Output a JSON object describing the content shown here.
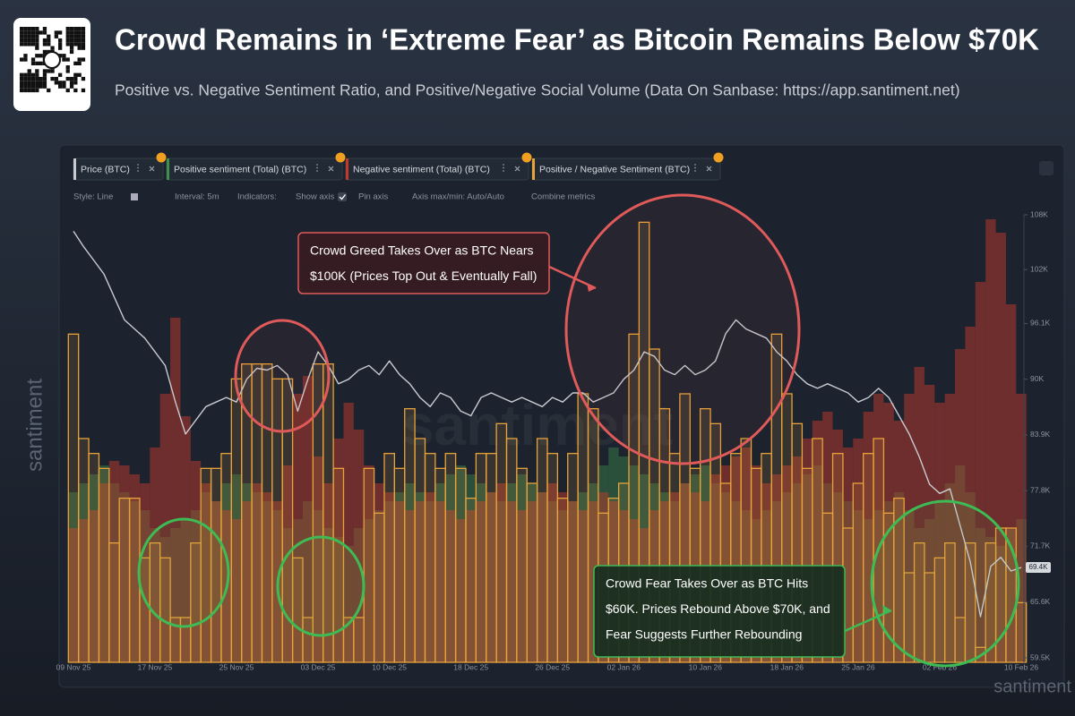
{
  "chart_data": {
    "type": "sentiment-combo",
    "title": "Crowd Remains in ‘Extreme Fear’ as Bitcoin Remains Below $70K",
    "subtitle": "Positive vs. Negative Sentiment Ratio, and Positive/Negative Social Volume (Data On Sanbase: https://app.santiment.net)",
    "categories": [
      "09 Nov 25",
      null,
      null,
      null,
      null,
      null,
      null,
      null,
      "17 Nov 25",
      null,
      null,
      null,
      null,
      null,
      null,
      null,
      "25 Nov 25",
      null,
      null,
      null,
      null,
      null,
      null,
      null,
      "03 Dec 25",
      null,
      null,
      null,
      null,
      null,
      null,
      "10 Dec 25",
      null,
      null,
      null,
      null,
      null,
      null,
      null,
      "18 Dec 25",
      null,
      null,
      null,
      null,
      null,
      null,
      null,
      "26 Dec 25",
      null,
      null,
      null,
      null,
      null,
      null,
      "02 Jan 26",
      null,
      null,
      null,
      null,
      null,
      null,
      null,
      "10 Jan 26",
      null,
      null,
      null,
      null,
      null,
      null,
      null,
      "18 Jan 26",
      null,
      null,
      null,
      null,
      null,
      null,
      "25 Jan 26",
      null,
      null,
      null,
      null,
      null,
      null,
      null,
      "02 Feb 26",
      null,
      null,
      null,
      null,
      null,
      null,
      null,
      "10 Feb 26"
    ],
    "series": [
      {
        "name": "Price (BTC)",
        "color": "#c8cbd0",
        "axis": "y2",
        "values": [
          106200,
          104500,
          103000,
          101500,
          99000,
          96500,
          95500,
          94500,
          93000,
          91500,
          87500,
          84000,
          85500,
          87000,
          87500,
          88000,
          87500,
          90000,
          91200,
          91000,
          91500,
          90500,
          86500,
          90000,
          93000,
          91500,
          89500,
          90000,
          91000,
          91500,
          90500,
          92000,
          90500,
          89500,
          88000,
          87000,
          88500,
          88000,
          86500,
          86000,
          88000,
          88500,
          88000,
          87500,
          88000,
          87500,
          87000,
          88000,
          87500,
          88500,
          88500,
          87500,
          88000,
          88500,
          90000,
          91000,
          93000,
          92500,
          91000,
          90500,
          91500,
          90500,
          91000,
          92000,
          95000,
          96500,
          95500,
          95000,
          94500,
          93000,
          92000,
          90500,
          89500,
          89000,
          89500,
          89000,
          88500,
          87500,
          88000,
          89000,
          88000,
          86000,
          84000,
          81500,
          78500,
          77500,
          78000,
          74000,
          70000,
          64000,
          69500,
          70500,
          69000,
          69400
        ]
      },
      {
        "name": "Positive sentiment (Total) (BTC)",
        "color": "#3f8f4f",
        "axis": "y3",
        "values": [
          38,
          40,
          42,
          44,
          40,
          38,
          36,
          34,
          30,
          28,
          30,
          32,
          34,
          38,
          36,
          40,
          42,
          40,
          38,
          36,
          34,
          30,
          32,
          36,
          34,
          30,
          28,
          26,
          30,
          32,
          34,
          36,
          38,
          40,
          38,
          36,
          40,
          42,
          44,
          42,
          40,
          38,
          36,
          40,
          42,
          40,
          38,
          36,
          34,
          36,
          38,
          40,
          44,
          48,
          46,
          44,
          42,
          40,
          38,
          36,
          40,
          42,
          44,
          40,
          38,
          36,
          34,
          32,
          34,
          36,
          38,
          40,
          42,
          44,
          40,
          38,
          36,
          34,
          32,
          34,
          36,
          38,
          34,
          30,
          32,
          36,
          40,
          44,
          38,
          30,
          28,
          26,
          30,
          32
        ]
      },
      {
        "name": "Negative sentiment (Total) (BTC)",
        "color": "#c0392b",
        "axis": "y3",
        "values": [
          30,
          32,
          34,
          40,
          45,
          44,
          42,
          40,
          48,
          60,
          77,
          55,
          45,
          40,
          36,
          34,
          32,
          36,
          40,
          38,
          36,
          44,
          60,
          64,
          46,
          40,
          50,
          58,
          52,
          44,
          40,
          38,
          36,
          34,
          36,
          38,
          36,
          34,
          32,
          34,
          36,
          38,
          40,
          36,
          34,
          36,
          38,
          40,
          38,
          36,
          34,
          36,
          38,
          36,
          34,
          32,
          30,
          34,
          36,
          38,
          40,
          38,
          36,
          42,
          44,
          46,
          48,
          44,
          40,
          42,
          44,
          46,
          50,
          54,
          56,
          52,
          48,
          50,
          56,
          60,
          58,
          54,
          60,
          66,
          62,
          58,
          60,
          70,
          75,
          85,
          99,
          96,
          80,
          60
        ]
      },
      {
        "name": "Positive / Negative Sentiment (BTC)",
        "color": "#e8a33a",
        "axis": "y",
        "values": [
          2.2,
          1.5,
          1.4,
          1.3,
          0.8,
          1.1,
          1.1,
          0.7,
          0.8,
          0.7,
          0.3,
          0.3,
          0.8,
          1.3,
          1.3,
          1.4,
          1.9,
          2.0,
          2.0,
          2.0,
          1.9,
          1.9,
          0.7,
          0.3,
          2.0,
          2.0,
          1.3,
          0.3,
          0.3,
          1.3,
          1.0,
          1.4,
          1.3,
          1.7,
          1.5,
          1.4,
          1.3,
          1.4,
          1.3,
          1.1,
          1.4,
          1.4,
          1.6,
          1.5,
          1.3,
          1.2,
          1.5,
          1.4,
          1.1,
          1.4,
          1.8,
          1.7,
          1.0,
          1.1,
          1.2,
          2.2,
          2.95,
          2.1,
          1.7,
          1.4,
          1.8,
          1.3,
          1.7,
          1.6,
          1.2,
          1.4,
          1.5,
          1.3,
          1.4,
          2.2,
          1.8,
          1.6,
          1.3,
          1.5,
          1.0,
          1.4,
          0.9,
          1.2,
          1.4,
          1.5,
          1.0,
          1.1,
          0.6,
          0.8,
          0.6,
          0.7,
          0.8,
          0.3,
          0.8,
          0.1,
          0.8,
          0.9,
          0.9,
          0.4
        ]
      }
    ],
    "ylim": [
      0,
      3
    ],
    "y3lim": [
      0,
      100
    ],
    "y2lim": [
      59500,
      108000
    ],
    "y2ticks": [
      {
        "value": 108000,
        "label": "108K"
      },
      {
        "value": 102000,
        "label": "102K"
      },
      {
        "value": 96100,
        "label": "96.1K"
      },
      {
        "value": 90000,
        "label": "90K"
      },
      {
        "value": 83900,
        "label": "83.9K"
      },
      {
        "value": 77800,
        "label": "77.8K"
      },
      {
        "value": 71700,
        "label": "71.7K"
      },
      {
        "value": 65600,
        "label": "65.6K"
      },
      {
        "value": 59500,
        "label": "59.5K"
      }
    ],
    "y2_current": {
      "value": 69400,
      "label": "69.4K"
    },
    "annotations": [
      {
        "lines": [
          "Crowd Greed Takes Over as BTC Nears",
          "$100K (Prices Top Out & Eventually Fall)"
        ],
        "color": "#e05a5a"
      },
      {
        "lines": [
          "Crowd Fear Takes Over as BTC Hits",
          "$60K. Prices Rebound Above $70K, and",
          "Fear Suggests Further Rebounding"
        ],
        "color": "#3dbb55"
      }
    ]
  },
  "toolbar": [
    "Style: Line",
    "Interval: 5m",
    "Indicators:",
    "Show axis",
    "Pin axis",
    "Axis max/min: Auto/Auto",
    "Combine metrics"
  ],
  "watermark": "santiment"
}
